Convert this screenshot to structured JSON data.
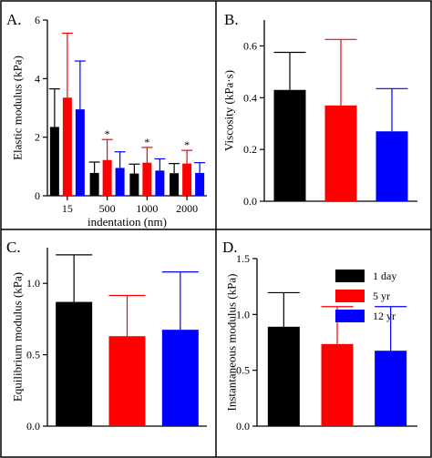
{
  "chart_data": [
    {
      "type": "bar",
      "panel_label": "A.",
      "xlabel": "indentation (nm)",
      "ylabel": "Elastic modulus (kPa)",
      "ylim": [
        0,
        6
      ],
      "yticks": [
        "0",
        "2",
        "4",
        "6"
      ],
      "categories": [
        "15",
        "500",
        "1000",
        "2000"
      ],
      "series": [
        {
          "name": "1 day",
          "color": "#000000",
          "values": [
            2.35,
            0.78,
            0.76,
            0.77
          ],
          "errors": [
            1.3,
            0.37,
            0.32,
            0.33
          ]
        },
        {
          "name": "5 yr",
          "color": "#ff0000",
          "values": [
            3.35,
            1.22,
            1.13,
            1.1
          ],
          "errors": [
            2.2,
            0.7,
            0.52,
            0.45
          ]
        },
        {
          "name": "12 yr",
          "color": "#0000ff",
          "values": [
            2.95,
            0.95,
            0.86,
            0.78
          ],
          "errors": [
            1.65,
            0.55,
            0.4,
            0.35
          ]
        }
      ],
      "annotations": [
        {
          "category": "500",
          "text": "*"
        },
        {
          "category": "1000",
          "text": "*"
        },
        {
          "category": "2000",
          "text": "*"
        }
      ]
    },
    {
      "type": "bar",
      "panel_label": "B.",
      "ylabel": "Viscosity (kPa·s)",
      "ylim": [
        0,
        0.7
      ],
      "yticks": [
        "0.0",
        "0.2",
        "0.4",
        "0.6"
      ],
      "categories": [
        "1 day",
        "5 yr",
        "12 yr"
      ],
      "colors": [
        "#000000",
        "#ff0000",
        "#0000ff"
      ],
      "values": [
        0.43,
        0.37,
        0.27
      ],
      "errors": [
        0.145,
        0.255,
        0.165
      ]
    },
    {
      "type": "bar",
      "panel_label": "C.",
      "ylabel": "Equilibrium modulus (kPa)",
      "ylim": [
        0,
        1.25
      ],
      "yticks": [
        "0.0",
        "0.5",
        "1.0"
      ],
      "categories": [
        "1 day",
        "5 yr",
        "12 yr"
      ],
      "colors": [
        "#000000",
        "#ff0000",
        "#0000ff"
      ],
      "values": [
        0.87,
        0.63,
        0.675
      ],
      "errors": [
        0.33,
        0.285,
        0.405
      ]
    },
    {
      "type": "bar",
      "panel_label": "D.",
      "ylabel": "Instantaneous modulus (kPa)",
      "ylim": [
        0,
        1.5
      ],
      "yticks": [
        "0.0",
        "0.5",
        "1.0",
        "1.5"
      ],
      "categories": [
        "1 day",
        "5 yr",
        "12 yr"
      ],
      "colors": [
        "#000000",
        "#ff0000",
        "#0000ff"
      ],
      "values": [
        0.89,
        0.735,
        0.675
      ],
      "errors": [
        0.305,
        0.335,
        0.395
      ],
      "legend": {
        "position": "top-right",
        "entries": [
          {
            "label": "1 day",
            "color": "#000000"
          },
          {
            "label": "5 yr",
            "color": "#ff0000"
          },
          {
            "label": "12 yr",
            "color": "#0000ff"
          }
        ]
      }
    }
  ]
}
